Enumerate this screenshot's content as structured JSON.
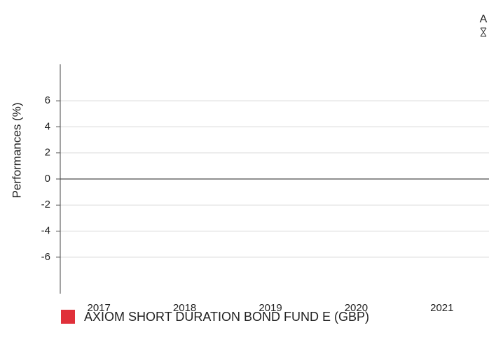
{
  "corner_label": "A",
  "chart_data": {
    "type": "bar",
    "y_label": "Performances (%)",
    "categories": [
      "2017",
      "2018",
      "2019",
      "2020",
      "2021"
    ],
    "series": [
      {
        "name": "AXIOM SHORT DURATION BOND FUND E (GBP)",
        "color": "#e0303a",
        "values": [
          null,
          null,
          null,
          null,
          null
        ]
      }
    ],
    "ylim": [
      -8.8,
      8.8
    ],
    "yticks": [
      6,
      4,
      2,
      0,
      -2,
      -4,
      -6
    ],
    "grid": true
  }
}
